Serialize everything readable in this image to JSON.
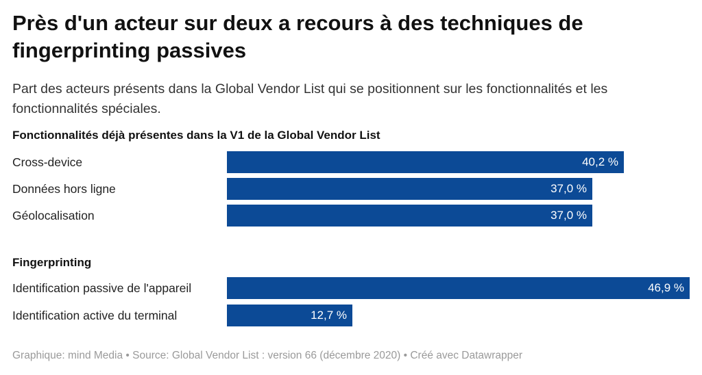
{
  "title": "Près d'un acteur sur deux a recours à des techniques de fingerprinting passives",
  "subtitle": "Part des acteurs présents dans la Global Vendor List qui se positionnent sur les fonctionnalités et les fonctionnalités spéciales.",
  "footer": "Graphique: mind Media • Source: Global Vendor List : version 66 (décembre 2020) • Créé avec Datawrapper",
  "colors": {
    "bar": "#0c4a96"
  },
  "chart_data": {
    "type": "bar",
    "orientation": "horizontal",
    "title": "Près d'un acteur sur deux a recours à des techniques de fingerprinting passives",
    "unit": "%",
    "xlim": [
      0,
      46.9
    ],
    "groups": [
      {
        "label": "Fonctionnalités déjà présentes dans la V1 de la Global Vendor List",
        "categories": [
          "Cross-device",
          "Données hors ligne",
          "Géolocalisation"
        ],
        "values": [
          40.2,
          37.0,
          37.0
        ],
        "value_labels": [
          "40,2 %",
          "37,0 %",
          "37,0 %"
        ]
      },
      {
        "label": "Fingerprinting",
        "categories": [
          "Identification passive de l'appareil",
          "Identification active du terminal"
        ],
        "values": [
          46.9,
          12.7
        ],
        "value_labels": [
          "46,9 %",
          "12,7 %"
        ]
      }
    ]
  }
}
